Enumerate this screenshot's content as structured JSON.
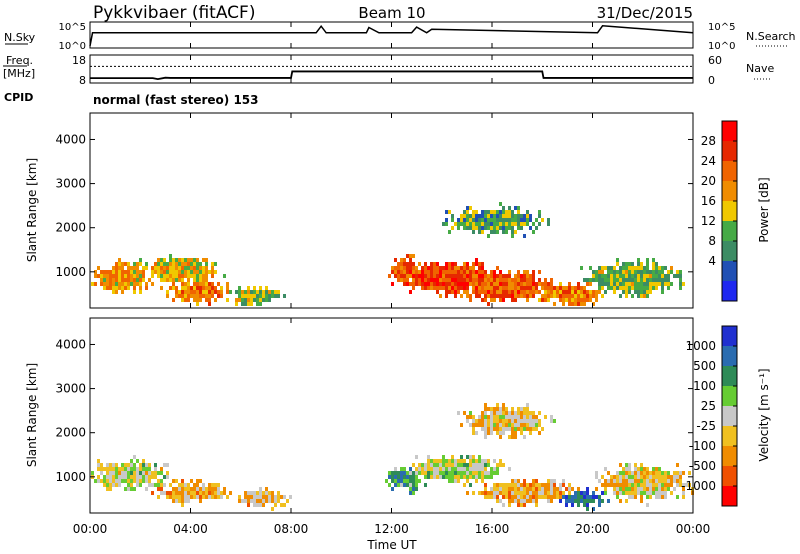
{
  "header": {
    "title": "Pykkvibaer (fitACF)",
    "beam": "Beam 10",
    "date": "31/Dec/2015"
  },
  "nsky_panel": {
    "label": "N.Sky",
    "ticks_left": [
      "10^5",
      "10^0"
    ],
    "ticks_right": [
      "10^5",
      "10^0"
    ],
    "right_label": "N.Search"
  },
  "freq_panel": {
    "label_line1": "Freq.",
    "label_line2": "[MHz]",
    "ticks_left": [
      "18",
      "8"
    ],
    "ticks_right": [
      "60",
      "0"
    ],
    "right_label": "Nave",
    "cpid_label": "CPID",
    "cpid_text": "normal (fast stereo) 153"
  },
  "power_panel": {
    "ylabel": "Slant Range [km]",
    "yticks": [
      "4000",
      "3000",
      "2000",
      "1000"
    ],
    "colorbar_label": "Power [dB]",
    "colorbar_ticks": [
      "28",
      "24",
      "20",
      "16",
      "12",
      "8",
      "4"
    ],
    "colors": [
      "#1e28f0",
      "#2050b4",
      "#3c8c64",
      "#46aa46",
      "#f0c800",
      "#f08c00",
      "#f06400",
      "#e62800",
      "#ff0000"
    ]
  },
  "velocity_panel": {
    "ylabel": "Slant Range [km]",
    "yticks": [
      "4000",
      "3000",
      "2000",
      "1000"
    ],
    "colorbar_label": "Velocity [m s⁻¹]",
    "colorbar_ticks": [
      "1000",
      "500",
      "100",
      "25",
      "-25",
      "-100",
      "-500",
      "-1000"
    ],
    "colors": [
      "#2030d0",
      "#2a6cb0",
      "#2e8b57",
      "#66cc33",
      "#c8c8c8",
      "#f0c020",
      "#f08c00",
      "#f05000",
      "#ff0000"
    ]
  },
  "x_axis": {
    "ticks": [
      "00:00",
      "04:00",
      "08:00",
      "12:00",
      "16:00",
      "20:00",
      "00:00"
    ],
    "label": "Time UT"
  },
  "chart_data": [
    {
      "type": "heatmap",
      "name": "power",
      "x_range_hours": [
        0,
        24
      ],
      "y_range_km": [
        180,
        4600
      ],
      "color_range_db": [
        0,
        30
      ],
      "blobs": [
        {
          "t": 1.2,
          "r": 900,
          "dt": 1.1,
          "dr": 350,
          "db": 18
        },
        {
          "t": 3.5,
          "r": 1100,
          "dt": 1.5,
          "dr": 300,
          "db": 16
        },
        {
          "t": 4.2,
          "r": 600,
          "dt": 1.2,
          "dr": 250,
          "db": 20
        },
        {
          "t": 6.5,
          "r": 500,
          "dt": 1.0,
          "dr": 200,
          "db": 12
        },
        {
          "t": 12.5,
          "r": 1100,
          "dt": 0.6,
          "dr": 300,
          "db": 22
        },
        {
          "t": 14.5,
          "r": 900,
          "dt": 2.2,
          "dr": 350,
          "db": 24
        },
        {
          "t": 16.5,
          "r": 700,
          "dt": 2.0,
          "dr": 350,
          "db": 22
        },
        {
          "t": 19.0,
          "r": 550,
          "dt": 1.5,
          "dr": 250,
          "db": 20
        },
        {
          "t": 21.5,
          "r": 900,
          "dt": 1.8,
          "dr": 400,
          "db": 12
        },
        {
          "t": 16.0,
          "r": 2200,
          "dt": 2.0,
          "dr": 300,
          "db": 10
        }
      ]
    },
    {
      "type": "heatmap",
      "name": "velocity",
      "x_range_hours": [
        0,
        24
      ],
      "y_range_km": [
        180,
        4600
      ],
      "color_range_ms": [
        -1000,
        1000
      ],
      "blobs": [
        {
          "t": 1.5,
          "r": 1100,
          "dt": 1.4,
          "dr": 350,
          "v": 0
        },
        {
          "t": 4.0,
          "r": 700,
          "dt": 1.4,
          "dr": 250,
          "v": -300
        },
        {
          "t": 6.8,
          "r": 550,
          "dt": 1.0,
          "dr": 200,
          "v": -250
        },
        {
          "t": 12.5,
          "r": 1000,
          "dt": 0.7,
          "dr": 300,
          "v": 400
        },
        {
          "t": 14.5,
          "r": 1200,
          "dt": 2.0,
          "dr": 300,
          "v": 50
        },
        {
          "t": 17.5,
          "r": 700,
          "dt": 2.0,
          "dr": 300,
          "v": -300
        },
        {
          "t": 19.5,
          "r": 550,
          "dt": 1.0,
          "dr": 200,
          "v": 700
        },
        {
          "t": 22.0,
          "r": 900,
          "dt": 1.8,
          "dr": 400,
          "v": -150
        },
        {
          "t": 16.5,
          "r": 2300,
          "dt": 1.6,
          "dr": 350,
          "v": -200
        }
      ]
    },
    {
      "type": "line",
      "name": "n_sky",
      "x_hours": [
        0,
        0.1,
        9.0,
        9.2,
        9.4,
        11.0,
        11.1,
        11.5,
        12.8,
        13.0,
        13.4,
        13.6,
        20.2,
        20.4,
        24
      ],
      "y_log10": [
        0,
        3.0,
        3.0,
        4.5,
        3.0,
        3.0,
        4.2,
        3.0,
        3.0,
        4.3,
        3.0,
        3.8,
        3.0,
        4.6,
        3.0
      ]
    },
    {
      "type": "line",
      "name": "freq_mhz",
      "x_hours": [
        0,
        2.5,
        2.7,
        3.0,
        3.2,
        8.0,
        8.05,
        18.0,
        18.05,
        24
      ],
      "y": [
        9.6,
        9.6,
        9.2,
        9.8,
        9.7,
        9.7,
        12.4,
        12.4,
        9.7,
        9.7
      ]
    },
    {
      "type": "line",
      "name": "nave",
      "x_hours": [
        0,
        24
      ],
      "y": [
        39,
        39
      ]
    }
  ]
}
